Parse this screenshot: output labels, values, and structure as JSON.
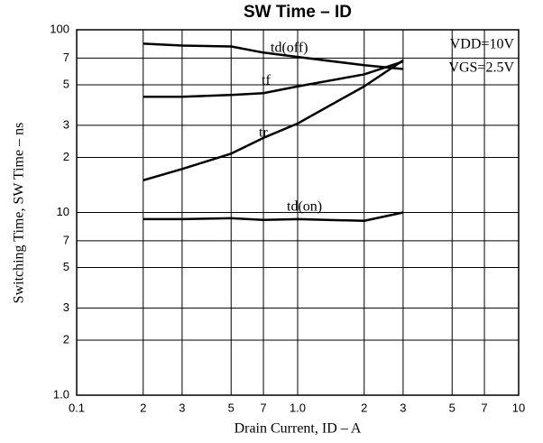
{
  "chart_data": {
    "type": "line",
    "title": "SW Time – ID",
    "x_label": "Drain Current, ID – A",
    "y_label": "Switching Time, SW Time – ns",
    "annotations": [
      "VDD=10V",
      "VGS=2.5V"
    ],
    "x": [
      0.2,
      0.3,
      0.5,
      0.7,
      1.0,
      2,
      3
    ],
    "series": [
      {
        "name": "td(off)",
        "color": "#000000",
        "values": [
          84,
          82,
          81,
          75,
          71,
          64,
          61
        ]
      },
      {
        "name": "tf",
        "color": "#000000",
        "values": [
          43,
          43,
          44,
          45,
          49,
          57,
          67
        ]
      },
      {
        "name": "tr",
        "color": "#000000",
        "values": [
          15,
          17.3,
          21,
          25.6,
          30.7,
          49,
          68
        ]
      },
      {
        "name": "td(on)",
        "color": "#000000",
        "values": [
          9.2,
          9.2,
          9.3,
          9.1,
          9.2,
          9.0,
          10
        ]
      }
    ],
    "xlim": [
      0.1,
      10
    ],
    "ylim": [
      1,
      100
    ],
    "xscale": "log",
    "yscale": "log",
    "grid": true,
    "xticks": [
      0.1,
      {
        "value": 0.2,
        "label": "2"
      },
      {
        "value": 0.3,
        "label": "3"
      },
      {
        "value": 0.5,
        "label": "5"
      },
      {
        "value": 0.7,
        "label": "7"
      },
      {
        "value": 1,
        "label": "1.0"
      },
      2,
      3,
      5,
      7,
      10
    ],
    "yticks": [
      {
        "value": 1,
        "label": "1.0"
      },
      2,
      3,
      5,
      7,
      10,
      {
        "value": 20,
        "label": "2"
      },
      {
        "value": 30,
        "label": "3"
      },
      {
        "value": 50,
        "label": "5"
      },
      {
        "value": 70,
        "label": "7"
      },
      100
    ]
  }
}
